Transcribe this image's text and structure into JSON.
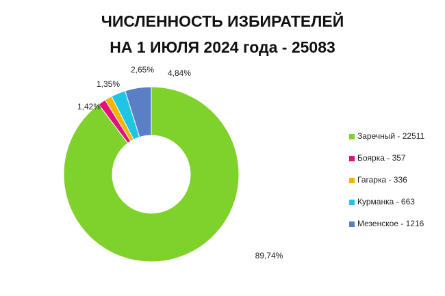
{
  "chart_data": {
    "type": "pie",
    "title": "ЧИСЛЕННОСТЬ ИЗБИРАТЕЛЕЙ",
    "subtitle": "НА 1 ИЮЛЯ 2024 года - 25083",
    "categories": [
      "Заречный - 22511",
      "Боярка - 357",
      "Гагарка - 336",
      "Курманка - 663",
      "Мезенское - 1216"
    ],
    "values": [
      89.74,
      1.42,
      1.35,
      2.65,
      4.84
    ],
    "value_labels": [
      "89,74%",
      "1,42%",
      "1,35%",
      "2,65%",
      "4,84%"
    ],
    "colors": [
      "#7fd12b",
      "#e0137b",
      "#f2b600",
      "#1fc6e4",
      "#5b7fc6"
    ],
    "donut": true,
    "legend": "right"
  }
}
